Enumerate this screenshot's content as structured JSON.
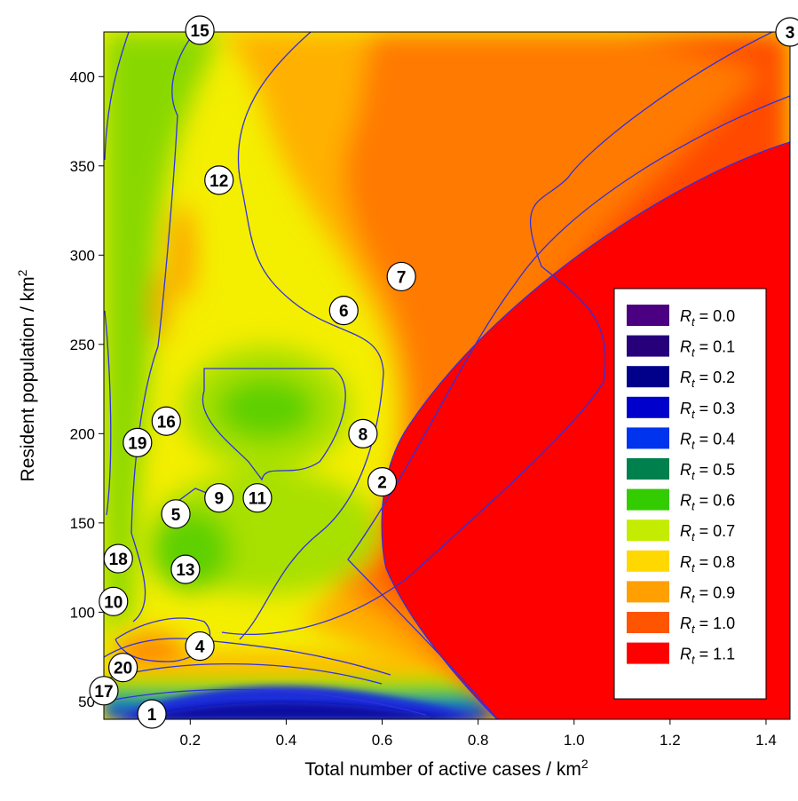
{
  "chart_data": {
    "type": "heatmap",
    "title": "",
    "xlabel": "Total number of active cases / km",
    "xlabel_sup": "2",
    "ylabel": "Resident population / km",
    "ylabel_sup": "2",
    "xlim": [
      0.02,
      1.45
    ],
    "ylim": [
      40,
      425
    ],
    "x_ticks": [
      0.2,
      0.4,
      0.6,
      0.8,
      1.0,
      1.2,
      1.4
    ],
    "x_tick_labels": [
      "0.2",
      "0.4",
      "0.6",
      "0.8",
      "1.0",
      "1.2",
      "1.4"
    ],
    "y_ticks": [
      50,
      100,
      150,
      200,
      250,
      300,
      350,
      400
    ],
    "y_tick_labels": [
      "50",
      "100",
      "150",
      "200",
      "250",
      "300",
      "350",
      "400"
    ],
    "contour_line_color": "#3030e0",
    "legend": {
      "placement": "right",
      "var": "R",
      "sub": "t",
      "entries": [
        {
          "label": "0.0",
          "color": "#4b0082"
        },
        {
          "label": "0.1",
          "color": "#25007a"
        },
        {
          "label": "0.2",
          "color": "#00008b"
        },
        {
          "label": "0.3",
          "color": "#0000cd"
        },
        {
          "label": "0.4",
          "color": "#0033ee"
        },
        {
          "label": "0.5",
          "color": "#00804d"
        },
        {
          "label": "0.6",
          "color": "#33cc00"
        },
        {
          "label": "0.7",
          "color": "#c4ec00"
        },
        {
          "label": "0.8",
          "color": "#ffd800"
        },
        {
          "label": "0.9",
          "color": "#ffa000"
        },
        {
          "label": "1.0",
          "color": "#ff5500"
        },
        {
          "label": "1.1",
          "color": "#ff0000"
        }
      ]
    },
    "markers": [
      {
        "label": "1",
        "x": 0.12,
        "y": 43
      },
      {
        "label": "2",
        "x": 0.6,
        "y": 173
      },
      {
        "label": "3",
        "x": 1.45,
        "y": 425
      },
      {
        "label": "4",
        "x": 0.22,
        "y": 81
      },
      {
        "label": "5",
        "x": 0.17,
        "y": 155
      },
      {
        "label": "6",
        "x": 0.52,
        "y": 269
      },
      {
        "label": "7",
        "x": 0.64,
        "y": 288
      },
      {
        "label": "8",
        "x": 0.56,
        "y": 200
      },
      {
        "label": "9",
        "x": 0.26,
        "y": 164
      },
      {
        "label": "10",
        "x": 0.04,
        "y": 106
      },
      {
        "label": "11",
        "x": 0.34,
        "y": 164
      },
      {
        "label": "12",
        "x": 0.26,
        "y": 342
      },
      {
        "label": "13",
        "x": 0.19,
        "y": 124
      },
      {
        "label": "15",
        "x": 0.22,
        "y": 426
      },
      {
        "label": "16",
        "x": 0.15,
        "y": 207
      },
      {
        "label": "17",
        "x": 0.02,
        "y": 56
      },
      {
        "label": "18",
        "x": 0.05,
        "y": 130
      },
      {
        "label": "19",
        "x": 0.09,
        "y": 195
      },
      {
        "label": "20",
        "x": 0.06,
        "y": 69
      }
    ]
  }
}
